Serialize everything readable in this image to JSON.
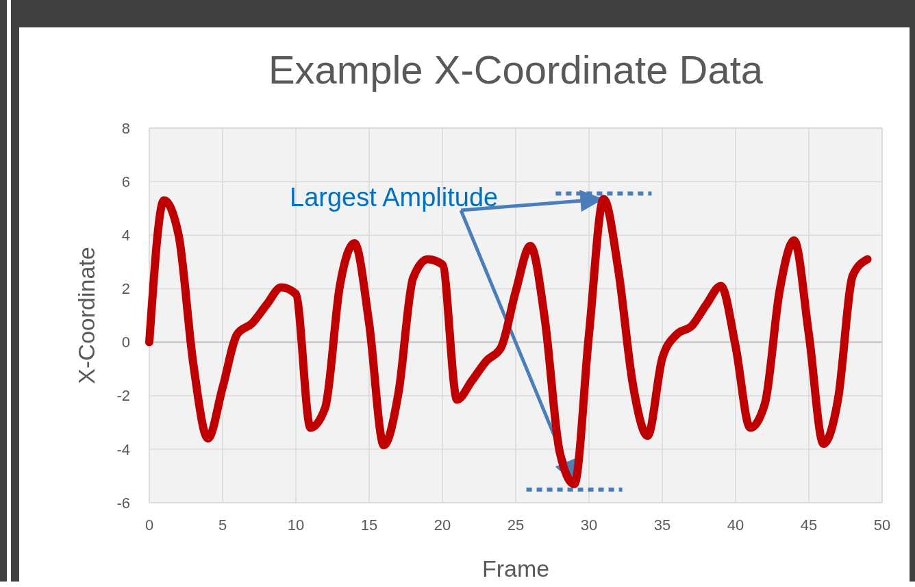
{
  "chart_data": {
    "type": "line",
    "title": "Example X-Coordinate Data",
    "xlabel": "Frame",
    "ylabel": "X-Coordinate",
    "x": [
      0,
      1,
      2,
      3,
      4,
      5,
      6,
      7,
      8,
      9,
      10,
      11,
      12,
      13,
      14,
      15,
      16,
      17,
      18,
      19,
      20,
      21,
      22,
      23,
      24,
      25,
      26,
      27,
      28,
      29,
      30,
      31,
      32,
      33,
      34,
      35,
      36,
      37,
      38,
      39,
      40,
      41,
      42,
      43,
      44,
      45,
      46,
      47,
      48,
      49
    ],
    "series": [
      {
        "color": "#c00000",
        "values": [
          0,
          5.3,
          4.0,
          -0.8,
          -3.6,
          -1.7,
          0.3,
          0.7,
          1.4,
          2.05,
          1.8,
          -3.2,
          -2.45,
          2.1,
          3.7,
          0.7,
          -3.85,
          -1.9,
          2.4,
          3.1,
          2.9,
          -2.15,
          -1.45,
          -0.7,
          -0.2,
          1.9,
          3.6,
          0.8,
          -4.1,
          -5.3,
          0.3,
          5.35,
          2.7,
          -1.6,
          -3.5,
          -0.6,
          0.3,
          0.6,
          1.4,
          2.1,
          -0.15,
          -3.2,
          -2.3,
          1.9,
          3.8,
          0.3,
          -3.8,
          -2.1,
          2.5,
          3.1
        ]
      }
    ],
    "xlim": [
      0,
      50
    ],
    "xticks": [
      0,
      5,
      10,
      15,
      20,
      25,
      30,
      35,
      40,
      45,
      50
    ],
    "ylim": [
      -6,
      8
    ],
    "yticks": [
      -6,
      -4,
      -2,
      0,
      2,
      4,
      6,
      8
    ],
    "grid": true,
    "line_style": "solid",
    "annotations": [
      "Largest Amplitude"
    ]
  }
}
